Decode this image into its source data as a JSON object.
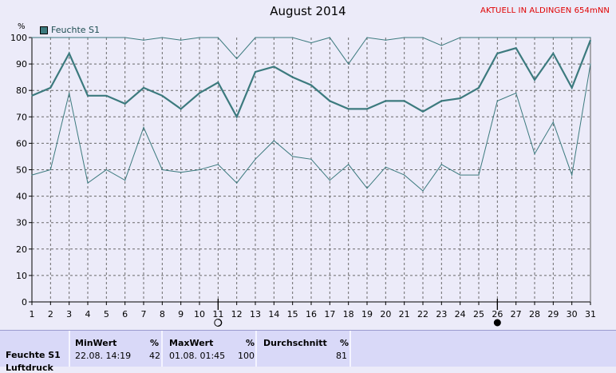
{
  "status_text": "AKTUELL IN ALDINGEN 654mNN",
  "chart_data": {
    "type": "line",
    "title": "August 2014",
    "ylabel": "%",
    "ylim": [
      0,
      100
    ],
    "yticks": [
      0,
      10,
      20,
      30,
      40,
      50,
      60,
      70,
      80,
      90,
      100
    ],
    "x": [
      1,
      2,
      3,
      4,
      5,
      6,
      7,
      8,
      9,
      10,
      11,
      12,
      13,
      14,
      15,
      16,
      17,
      18,
      19,
      20,
      21,
      22,
      23,
      24,
      25,
      26,
      27,
      28,
      29,
      30,
      31
    ],
    "legend": "Feuchte S1",
    "grid": true,
    "series": [
      {
        "name": "Feuchte S1",
        "role": "max",
        "color": "#3c7a7e",
        "values": [
          100,
          100,
          100,
          100,
          100,
          100,
          99,
          100,
          99,
          100,
          100,
          92,
          100,
          100,
          100,
          98,
          100,
          90,
          100,
          99,
          100,
          100,
          97,
          100,
          100,
          100,
          100,
          100,
          100,
          100,
          100
        ]
      },
      {
        "name": "Feuchte S1",
        "role": "mean",
        "color": "#3c7a7e",
        "values": [
          78,
          81,
          94,
          78,
          78,
          75,
          81,
          78,
          73,
          79,
          83,
          70,
          87,
          89,
          85,
          82,
          76,
          73,
          73,
          76,
          76,
          72,
          76,
          77,
          81,
          94,
          96,
          84,
          94,
          81,
          99
        ]
      },
      {
        "name": "Feuchte S1",
        "role": "min",
        "color": "#3c7a7e",
        "values": [
          48,
          50,
          79,
          45,
          50,
          46,
          66,
          50,
          49,
          50,
          52,
          45,
          54,
          61,
          55,
          54,
          46,
          52,
          43,
          51,
          48,
          42,
          52,
          48,
          48,
          76,
          79,
          56,
          68,
          48,
          90
        ]
      }
    ],
    "moon_markers": [
      {
        "day": 11,
        "phase": "first-quarter"
      },
      {
        "day": 26,
        "phase": "new-moon"
      }
    ]
  },
  "stats": {
    "row_label": "Feuchte S1",
    "row_label_2": "Luftdruck",
    "min": {
      "header": "MinWert",
      "unit": "%",
      "date": "22.08. 14:19",
      "value": "42"
    },
    "max": {
      "header": "MaxWert",
      "unit": "%",
      "date": "01.08. 01:45",
      "value": "100"
    },
    "avg": {
      "header": "Durchschnitt",
      "unit": "%",
      "value": "81"
    }
  }
}
